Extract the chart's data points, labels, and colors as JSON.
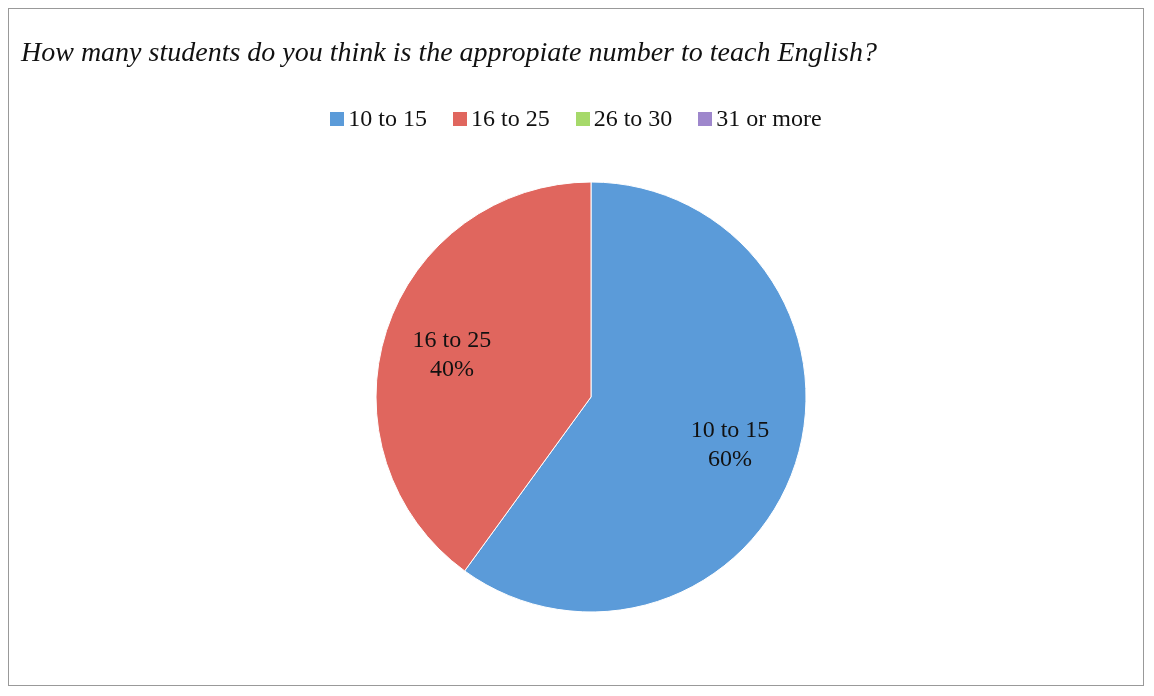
{
  "chart_data": {
    "type": "pie",
    "title": "How many students do you think is the appropiate number to teach English?",
    "categories": [
      "10 to 15",
      "16 to 25",
      "26 to 30",
      "31 or more"
    ],
    "values": [
      60,
      40,
      0,
      0
    ],
    "colors": [
      "#5b9bd9",
      "#e0665e",
      "#a6d96a",
      "#9e87cc"
    ],
    "value_labels": [
      "60%",
      "40%",
      null,
      null
    ],
    "legend": "top"
  }
}
